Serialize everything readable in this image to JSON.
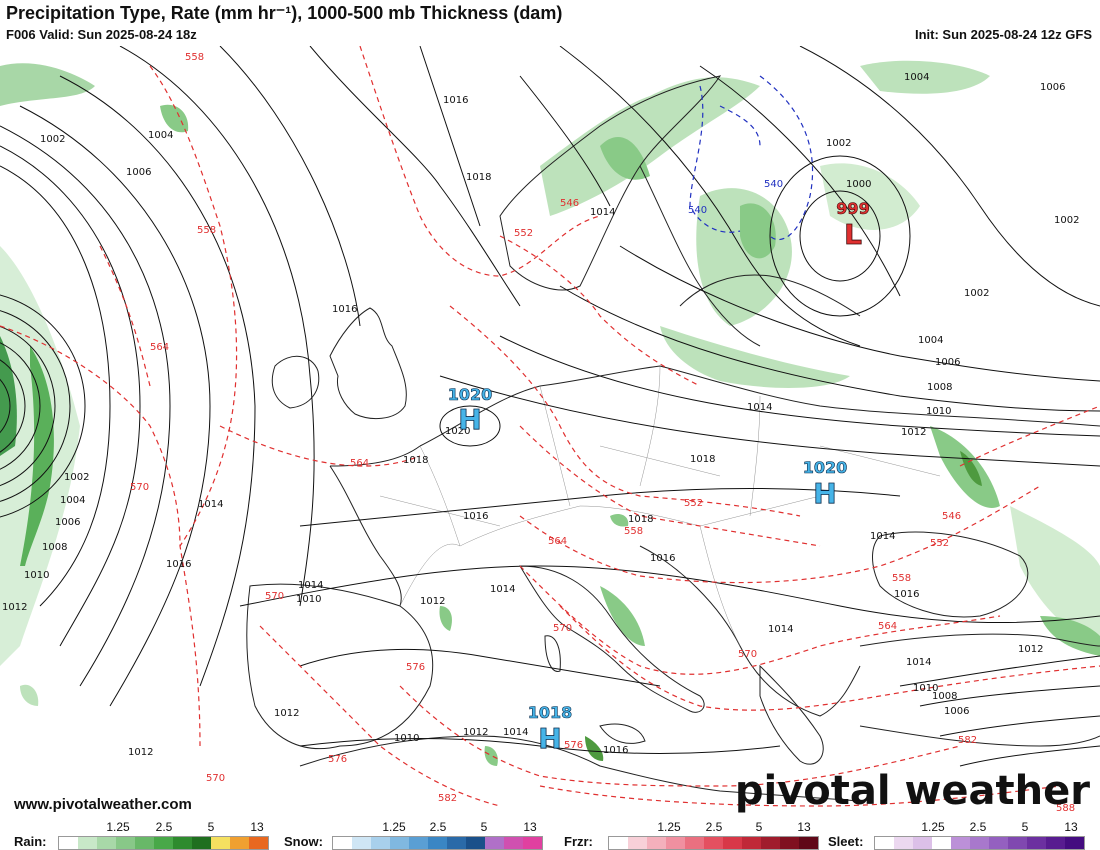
{
  "header": {
    "title": "Precipitation Type, Rate (mm hr⁻¹), 1000-500 mb Thickness (dam)",
    "valid": "F006 Valid: Sun 2025-08-24 18z",
    "init": "Init: Sun 2025-08-24 12z GFS"
  },
  "footer": {
    "site": "www.pivotalweather.com",
    "brand": "pivotal weather"
  },
  "pressure_centers": [
    {
      "type": "H",
      "value": "1020",
      "color": "#46b4e8"
    },
    {
      "type": "H",
      "value": "1020",
      "color": "#46b4e8"
    },
    {
      "type": "H",
      "value": "1018",
      "color": "#46b4e8"
    },
    {
      "type": "L",
      "value": "999",
      "color": "#e03030"
    }
  ],
  "isobar_labels": [
    "1016",
    "1018",
    "1016",
    "1014",
    "1002",
    "1004",
    "1006",
    "1004",
    "1006",
    "1002",
    "1000",
    "1002",
    "1002",
    "1004",
    "1006",
    "1008",
    "1010",
    "1012",
    "1014",
    "1018",
    "1016",
    "1014",
    "1018",
    "1016",
    "1014",
    "1016",
    "1014",
    "1012",
    "1010",
    "1012",
    "1010",
    "1012",
    "1014",
    "1016",
    "1014",
    "1014",
    "1010",
    "1008",
    "1006",
    "1012",
    "1012",
    "1002",
    "1004",
    "1006",
    "1008",
    "1010",
    "1012",
    "1014",
    "1016",
    "1018",
    "1020"
  ],
  "thickness_labels": [
    "558",
    "558",
    "564",
    "546",
    "552",
    "564",
    "570",
    "552",
    "558",
    "564",
    "546",
    "552",
    "558",
    "564",
    "570",
    "570",
    "570",
    "576",
    "576",
    "582",
    "576",
    "570",
    "540",
    "540",
    "582",
    "588"
  ],
  "legend": [
    {
      "name": "Rain:",
      "ticks": [
        "1.25",
        "2.5",
        "5",
        "13"
      ],
      "colors": [
        "#ffffff",
        "#c8e8c8",
        "#a8d8a8",
        "#88c888",
        "#68b868",
        "#48a848",
        "#2e8b2e",
        "#1f6f1f",
        "#f5e060",
        "#f0a030",
        "#e86820"
      ]
    },
    {
      "name": "Snow:",
      "ticks": [
        "1.25",
        "2.5",
        "5",
        "13"
      ],
      "colors": [
        "#ffffff",
        "#cfe6f5",
        "#a8d0ec",
        "#80b8e0",
        "#5a9fd4",
        "#3a86c4",
        "#2a6aa8",
        "#1a508a",
        "#b070c8",
        "#d050b0",
        "#e040a0"
      ]
    },
    {
      "name": "Frzr:",
      "ticks": [
        "1.25",
        "2.5",
        "5",
        "13"
      ],
      "colors": [
        "#ffffff",
        "#f8d0d8",
        "#f4b0bc",
        "#f090a0",
        "#ea7080",
        "#e45060",
        "#d83848",
        "#c02838",
        "#a01c2c",
        "#801020",
        "#600818"
      ]
    },
    {
      "name": "Sleet:",
      "ticks": [
        "1.25",
        "2.5",
        "5",
        "13"
      ],
      "colors": [
        "#ffffff",
        "#ecd8f0",
        "#dcc0e8",
        "#ccа8e0",
        "#bc90d8",
        "#a878cc",
        "#9460c0",
        "#8048b0",
        "#6c30a0",
        "#581c90",
        "#440c80"
      ]
    }
  ],
  "colors": {
    "isobar": "#111111",
    "thickness": "#e03030",
    "thickness_cold": "#2030c0",
    "coast": "#222222",
    "precip_light": "#b6dfb4",
    "precip_mid": "#7cc47a",
    "precip_heavy": "#2f8f3a"
  }
}
